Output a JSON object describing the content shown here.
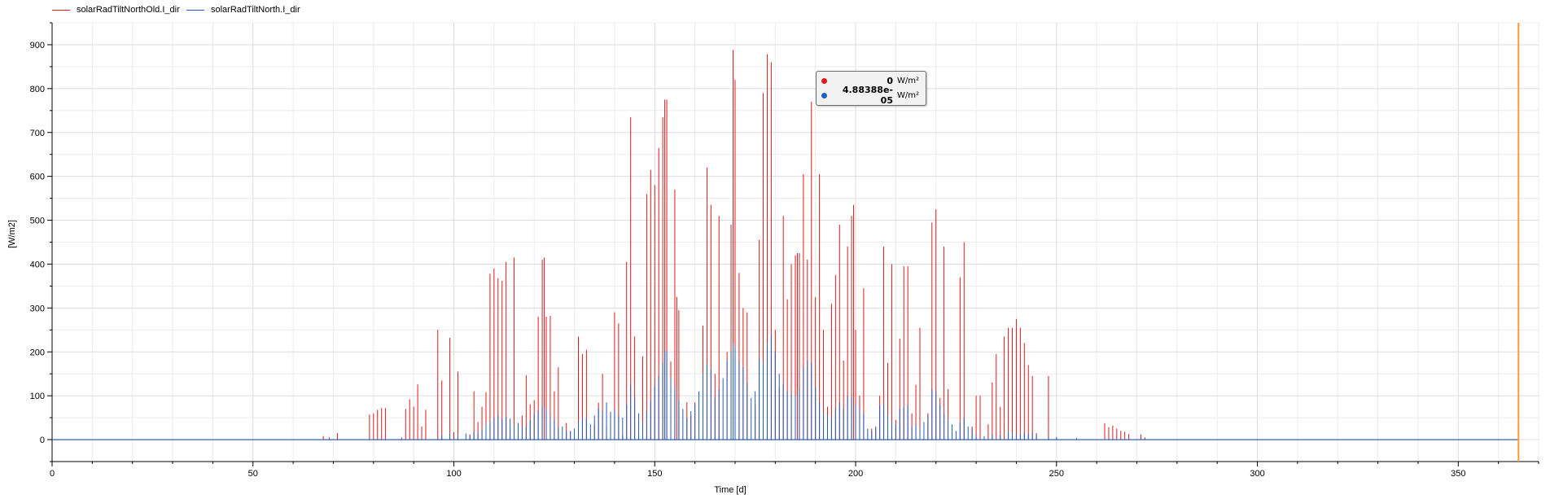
{
  "legend": {
    "items": [
      {
        "label": "solarRadTiltNorthOld.I_dir",
        "color": "#e31a1c"
      },
      {
        "label": "solarRadTiltNorth.I_dir",
        "color": "#1f5fbf"
      }
    ]
  },
  "tooltip": {
    "rows": [
      {
        "value": "0",
        "unit": "W/m²",
        "color": "#e31a1c"
      },
      {
        "value": "4.88388e-05",
        "unit": "W/m²",
        "color": "#1f5fbf"
      }
    ]
  },
  "cursor": {
    "x": 365,
    "color": "#ff9933"
  },
  "chart_data": {
    "type": "line",
    "title": "",
    "xlabel": "Time [d]",
    "ylabel": "[W/m2]",
    "xlim": [
      0,
      370
    ],
    "ylim": [
      -50,
      950
    ],
    "x_ticks": [
      0,
      50,
      100,
      150,
      200,
      250,
      300,
      350
    ],
    "y_ticks": [
      0,
      100,
      200,
      300,
      400,
      500,
      600,
      700,
      800,
      900
    ],
    "grid": true,
    "legend_position": "top-left",
    "series": [
      {
        "name": "solarRadTiltNorthOld.I_dir",
        "color": "#e31a1c",
        "spikes": [
          [
            67.5,
            8
          ],
          [
            69,
            5
          ],
          [
            71,
            15
          ],
          [
            79,
            57
          ],
          [
            80,
            60
          ],
          [
            81,
            68
          ],
          [
            82,
            72
          ],
          [
            83,
            72
          ],
          [
            87,
            5
          ],
          [
            88,
            70
          ],
          [
            89,
            92
          ],
          [
            90,
            75
          ],
          [
            91,
            126
          ],
          [
            92,
            30
          ],
          [
            93,
            68
          ],
          [
            96,
            250
          ],
          [
            97,
            135
          ],
          [
            99,
            232
          ],
          [
            100,
            17
          ],
          [
            101,
            155
          ],
          [
            104,
            12
          ],
          [
            105,
            110
          ],
          [
            106,
            40
          ],
          [
            107,
            75
          ],
          [
            108,
            108
          ],
          [
            109,
            378
          ],
          [
            110,
            390
          ],
          [
            111,
            368
          ],
          [
            112,
            362
          ],
          [
            113,
            405
          ],
          [
            114,
            24
          ],
          [
            115,
            415
          ],
          [
            116,
            18
          ],
          [
            117,
            55
          ],
          [
            118,
            147
          ],
          [
            119,
            80
          ],
          [
            120,
            90
          ],
          [
            121,
            280
          ],
          [
            122,
            410
          ],
          [
            122.5,
            415
          ],
          [
            123,
            280
          ],
          [
            124,
            282
          ],
          [
            125,
            110
          ],
          [
            126,
            165
          ],
          [
            128,
            38
          ],
          [
            129,
            20
          ],
          [
            131,
            235
          ],
          [
            132,
            195
          ],
          [
            133,
            205
          ],
          [
            135,
            34
          ],
          [
            136,
            84
          ],
          [
            137,
            150
          ],
          [
            138,
            30
          ],
          [
            139,
            63
          ],
          [
            140,
            290
          ],
          [
            141,
            265
          ],
          [
            142,
            10
          ],
          [
            143,
            405
          ],
          [
            144,
            735
          ],
          [
            145,
            235
          ],
          [
            146,
            13
          ],
          [
            147,
            190
          ],
          [
            148,
            560
          ],
          [
            149,
            615
          ],
          [
            150,
            580
          ],
          [
            151,
            665
          ],
          [
            152,
            735
          ],
          [
            152.5,
            775
          ],
          [
            153,
            775
          ],
          [
            154,
            178
          ],
          [
            155,
            570
          ],
          [
            155.5,
            325
          ],
          [
            156,
            295
          ],
          [
            158,
            85
          ],
          [
            159,
            55
          ],
          [
            160,
            85
          ],
          [
            162,
            260
          ],
          [
            163,
            620
          ],
          [
            164,
            535
          ],
          [
            165,
            150
          ],
          [
            166,
            510
          ],
          [
            168,
            200
          ],
          [
            169,
            490
          ],
          [
            169.5,
            888
          ],
          [
            170,
            820
          ],
          [
            171,
            380
          ],
          [
            172,
            300
          ],
          [
            173,
            290
          ],
          [
            175,
            80
          ],
          [
            176,
            455
          ],
          [
            177,
            790
          ],
          [
            178,
            878
          ],
          [
            179,
            860
          ],
          [
            180,
            250
          ],
          [
            181,
            120
          ],
          [
            182,
            510
          ],
          [
            183,
            320
          ],
          [
            184,
            400
          ],
          [
            185,
            420
          ],
          [
            185.5,
            425
          ],
          [
            186,
            425
          ],
          [
            187,
            605
          ],
          [
            188,
            410
          ],
          [
            189,
            770
          ],
          [
            190,
            325
          ],
          [
            191,
            605
          ],
          [
            192,
            250
          ],
          [
            193,
            75
          ],
          [
            194,
            310
          ],
          [
            195,
            375
          ],
          [
            196,
            490
          ],
          [
            197,
            180
          ],
          [
            198,
            440
          ],
          [
            199,
            510
          ],
          [
            199.5,
            535
          ],
          [
            200,
            250
          ],
          [
            201,
            100
          ],
          [
            202,
            345
          ],
          [
            204,
            25
          ],
          [
            205,
            25
          ],
          [
            206,
            100
          ],
          [
            207,
            440
          ],
          [
            208,
            175
          ],
          [
            209,
            400
          ],
          [
            210,
            45
          ],
          [
            211,
            230
          ],
          [
            212,
            395
          ],
          [
            213,
            395
          ],
          [
            214,
            60
          ],
          [
            215,
            125
          ],
          [
            216,
            255
          ],
          [
            218,
            60
          ],
          [
            219,
            495
          ],
          [
            220,
            525
          ],
          [
            221,
            95
          ],
          [
            222,
            440
          ],
          [
            223,
            115
          ],
          [
            226,
            370
          ],
          [
            227,
            450
          ],
          [
            229,
            30
          ],
          [
            230,
            100
          ],
          [
            231,
            100
          ],
          [
            233,
            35
          ],
          [
            234,
            130
          ],
          [
            235,
            195
          ],
          [
            236,
            75
          ],
          [
            237,
            235
          ],
          [
            238,
            255
          ],
          [
            239,
            255
          ],
          [
            240,
            275
          ],
          [
            241,
            255
          ],
          [
            242,
            220
          ],
          [
            243,
            170
          ],
          [
            244,
            145
          ],
          [
            245,
            15
          ],
          [
            248,
            145
          ],
          [
            262,
            37
          ],
          [
            263,
            28
          ],
          [
            264,
            32
          ],
          [
            265,
            25
          ],
          [
            266,
            20
          ],
          [
            267,
            18
          ],
          [
            268,
            13
          ],
          [
            271,
            12
          ],
          [
            272,
            5
          ]
        ]
      },
      {
        "name": "solarRadTiltNorth.I_dir",
        "color": "#1f5fbf",
        "spikes": [
          [
            97,
            10
          ],
          [
            99,
            13
          ],
          [
            101,
            10
          ],
          [
            103,
            14
          ],
          [
            104,
            10
          ],
          [
            105,
            18
          ],
          [
            106,
            15
          ],
          [
            107,
            22
          ],
          [
            108,
            35
          ],
          [
            109,
            40
          ],
          [
            110,
            50
          ],
          [
            111,
            55
          ],
          [
            112,
            46
          ],
          [
            113,
            52
          ],
          [
            114,
            48
          ],
          [
            115,
            32
          ],
          [
            116,
            38
          ],
          [
            117,
            28
          ],
          [
            118,
            30
          ],
          [
            119,
            45
          ],
          [
            120,
            58
          ],
          [
            121,
            66
          ],
          [
            122,
            78
          ],
          [
            123,
            70
          ],
          [
            124,
            55
          ],
          [
            125,
            45
          ],
          [
            126,
            28
          ],
          [
            127,
            30
          ],
          [
            128,
            20
          ],
          [
            129,
            18
          ],
          [
            130,
            25
          ],
          [
            131,
            40
          ],
          [
            132,
            50
          ],
          [
            133,
            48
          ],
          [
            134,
            35
          ],
          [
            135,
            55
          ],
          [
            136,
            72
          ],
          [
            137,
            65
          ],
          [
            138,
            85
          ],
          [
            139,
            60
          ],
          [
            140,
            70
          ],
          [
            141,
            55
          ],
          [
            142,
            50
          ],
          [
            143,
            80
          ],
          [
            144,
            125
          ],
          [
            145,
            95
          ],
          [
            146,
            60
          ],
          [
            147,
            40
          ],
          [
            148,
            65
          ],
          [
            149,
            90
          ],
          [
            150,
            122
          ],
          [
            151,
            145
          ],
          [
            152,
            175
          ],
          [
            152.5,
            205
          ],
          [
            153,
            200
          ],
          [
            154,
            140
          ],
          [
            155,
            120
          ],
          [
            156,
            90
          ],
          [
            157,
            70
          ],
          [
            158,
            50
          ],
          [
            159,
            65
          ],
          [
            160,
            80
          ],
          [
            161,
            110
          ],
          [
            162,
            150
          ],
          [
            163,
            172
          ],
          [
            164,
            160
          ],
          [
            165,
            95
          ],
          [
            166,
            115
          ],
          [
            167,
            140
          ],
          [
            168,
            180
          ],
          [
            169,
            200
          ],
          [
            169.5,
            220
          ],
          [
            170,
            210
          ],
          [
            171,
            175
          ],
          [
            172,
            165
          ],
          [
            173,
            130
          ],
          [
            174,
            95
          ],
          [
            175,
            110
          ],
          [
            176,
            185
          ],
          [
            177,
            175
          ],
          [
            178,
            220
          ],
          [
            179,
            240
          ],
          [
            180,
            200
          ],
          [
            181,
            150
          ],
          [
            182,
            125
          ],
          [
            183,
            110
          ],
          [
            184,
            105
          ],
          [
            185,
            100
          ],
          [
            186,
            115
          ],
          [
            187,
            165
          ],
          [
            188,
            180
          ],
          [
            189,
            175
          ],
          [
            190,
            120
          ],
          [
            191,
            85
          ],
          [
            192,
            60
          ],
          [
            193,
            55
          ],
          [
            194,
            50
          ],
          [
            195,
            70
          ],
          [
            196,
            85
          ],
          [
            197,
            70
          ],
          [
            198,
            100
          ],
          [
            199,
            95
          ],
          [
            200,
            80
          ],
          [
            201,
            70
          ],
          [
            202,
            60
          ],
          [
            203,
            25
          ],
          [
            204,
            20
          ],
          [
            205,
            30
          ],
          [
            206,
            78
          ],
          [
            207,
            80
          ],
          [
            208,
            55
          ],
          [
            209,
            40
          ],
          [
            210,
            35
          ],
          [
            211,
            70
          ],
          [
            212,
            75
          ],
          [
            213,
            78
          ],
          [
            214,
            30
          ],
          [
            215,
            35
          ],
          [
            216,
            25
          ],
          [
            217,
            40
          ],
          [
            218,
            55
          ],
          [
            219,
            115
          ],
          [
            220,
            110
          ],
          [
            221,
            80
          ],
          [
            222,
            60
          ],
          [
            223,
            45
          ],
          [
            224,
            35
          ],
          [
            225,
            20
          ],
          [
            226,
            40
          ],
          [
            227,
            50
          ],
          [
            228,
            30
          ],
          [
            229,
            25
          ],
          [
            230,
            10
          ],
          [
            232,
            8
          ],
          [
            234,
            12
          ],
          [
            236,
            10
          ],
          [
            238,
            18
          ],
          [
            239,
            15
          ],
          [
            240,
            10
          ],
          [
            241,
            12
          ],
          [
            242,
            16
          ],
          [
            243,
            14
          ],
          [
            244,
            16
          ],
          [
            245,
            10
          ],
          [
            248,
            8
          ],
          [
            250,
            6
          ],
          [
            255,
            4
          ]
        ]
      }
    ]
  }
}
